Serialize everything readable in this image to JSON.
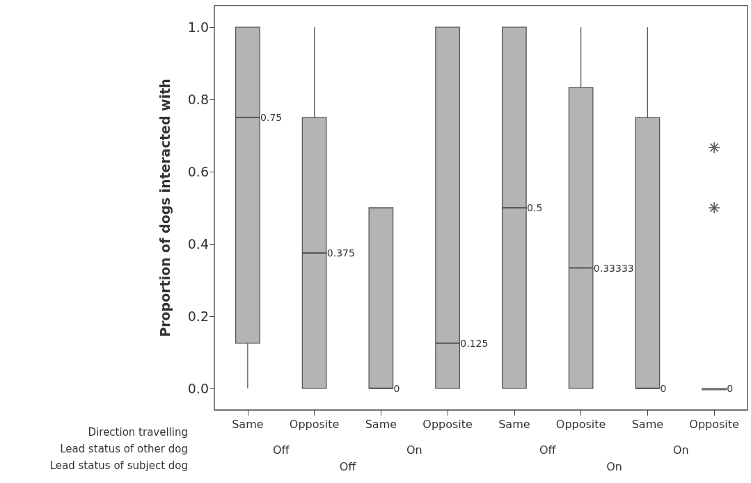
{
  "chart_data": {
    "type": "box",
    "ylabel": "Proportion of dogs interacted with",
    "categories": [
      "Same",
      "Opposite",
      "Same",
      "Opposite",
      "Same",
      "Opposite",
      "Same",
      "Opposite"
    ],
    "boxes": [
      {
        "low": 0,
        "q1": 0.125,
        "median": 0.75,
        "q3": 1,
        "high": 1
      },
      {
        "low": 0,
        "q1": 0,
        "median": 0.375,
        "q3": 0.75,
        "high": 1
      },
      {
        "low": 0,
        "q1": 0,
        "median": 0,
        "q3": 0.5,
        "high": 0.5
      },
      {
        "low": 0,
        "q1": 0,
        "median": 0.125,
        "q3": 1,
        "high": 1
      },
      {
        "low": 0,
        "q1": 0,
        "median": 0.5,
        "q3": 1,
        "high": 1
      },
      {
        "low": 0,
        "q1": 0,
        "median": 0.33333,
        "q3": 0.833,
        "high": 1
      },
      {
        "low": 0,
        "q1": 0,
        "median": 0,
        "q3": 0.75,
        "high": 1
      },
      {
        "low": 0,
        "q1": 0,
        "median": 0,
        "q3": 0,
        "high": 0,
        "outliers": [
          0.667,
          0.5
        ]
      }
    ],
    "color": "#b4b4b4",
    "data_labels": true,
    "value_labels": [
      "0.75",
      "0.375",
      "0",
      "0.125",
      "0.5",
      "0.33333",
      "0",
      "0"
    ],
    "grid": false,
    "ylim": [
      -0.06,
      1.06
    ],
    "yticks": [
      {
        "value": 0,
        "label": "0.0"
      },
      {
        "value": 0.2,
        "label": "0.2"
      },
      {
        "value": 0.4,
        "label": "0.4"
      },
      {
        "value": 0.6,
        "label": "0.6"
      },
      {
        "value": 0.8,
        "label": "0.8"
      },
      {
        "value": 1,
        "label": "1.0"
      }
    ],
    "annotations": [
      "Direction travelling",
      "Lead status of other dog",
      "Lead status of subject dog",
      "Off",
      "On",
      "Off",
      "On",
      "Off",
      "On"
    ]
  }
}
